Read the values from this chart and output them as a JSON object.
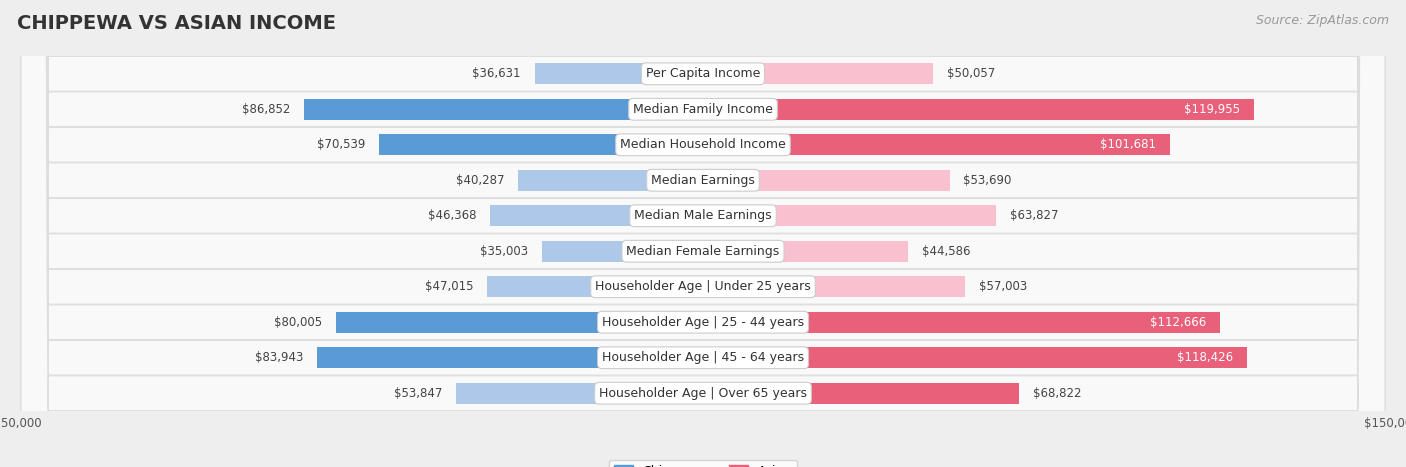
{
  "title": "CHIPPEWA VS ASIAN INCOME",
  "source": "Source: ZipAtlas.com",
  "categories": [
    "Per Capita Income",
    "Median Family Income",
    "Median Household Income",
    "Median Earnings",
    "Median Male Earnings",
    "Median Female Earnings",
    "Householder Age | Under 25 years",
    "Householder Age | 25 - 44 years",
    "Householder Age | 45 - 64 years",
    "Householder Age | Over 65 years"
  ],
  "chippewa_values": [
    36631,
    86852,
    70539,
    40287,
    46368,
    35003,
    47015,
    80005,
    83943,
    53847
  ],
  "asian_values": [
    50057,
    119955,
    101681,
    53690,
    63827,
    44586,
    57003,
    112666,
    118426,
    68822
  ],
  "chippewa_color_light": "#adc8e8",
  "chippewa_color_dark": "#5b9bd5",
  "asian_color_light": "#f9c0d0",
  "asian_color_dark": "#e8607a",
  "chip_dark_threshold": 65000,
  "asian_dark_threshold": 65000,
  "max_value": 150000,
  "bg_color": "#eeeeee",
  "row_bg": "#f9f9f9",
  "row_border": "#dddddd",
  "label_bg": "#ffffff",
  "label_border": "#cccccc",
  "title_fontsize": 14,
  "source_fontsize": 9,
  "label_fontsize": 9,
  "value_fontsize": 8.5,
  "legend_fontsize": 9,
  "chip_inside_threshold": 90000,
  "asian_inside_threshold": 90000
}
